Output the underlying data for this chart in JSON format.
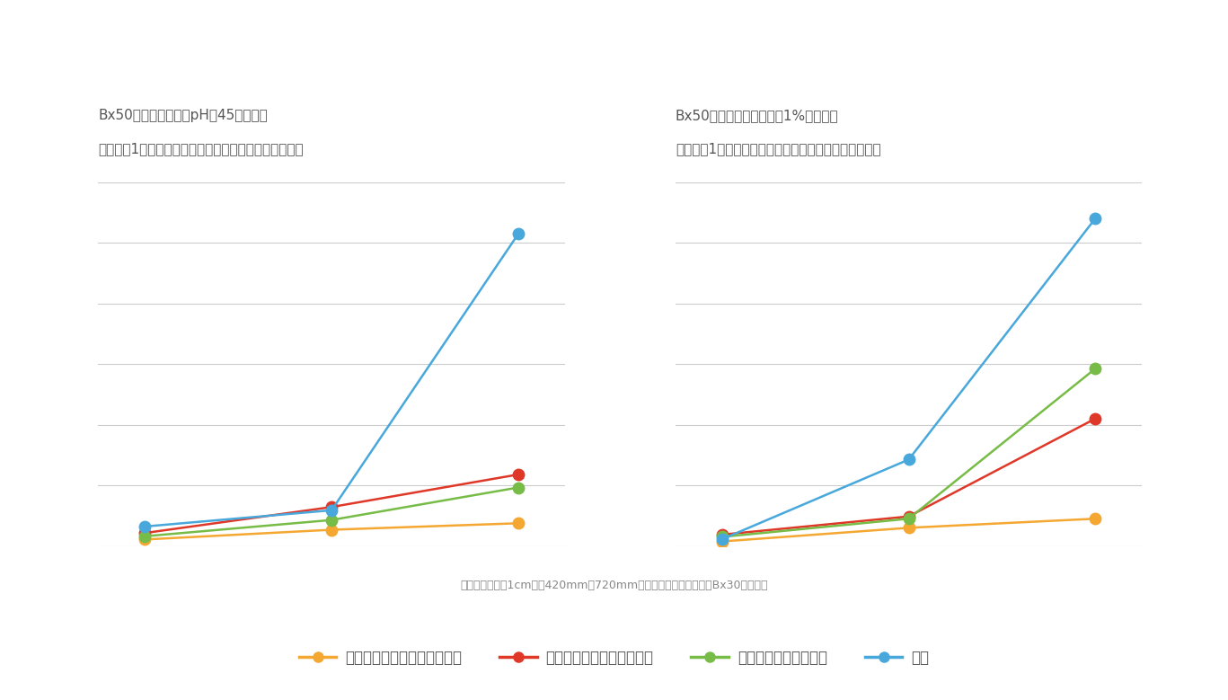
{
  "left_title_line1": "Bx50のでん粉に塩酸pHを45に調整。",
  "left_title_line2": "各濃度に1時間オートクレイブ処理し、着色度を測定。",
  "right_title_line1": "Bx50のでん粉にグリシン1%を添加。",
  "right_title_line2": "各濃度に1時間オートクレイブ処理し、着色度を測定。",
  "footnote": "着色度は光彩長1cmでの420mmと720mmの差として算出（数値はBx30の換算）",
  "x_values": [
    0,
    1,
    2
  ],
  "left_data": {
    "orange": [
      0.01,
      0.025,
      0.035
    ],
    "red": [
      0.02,
      0.06,
      0.11
    ],
    "green": [
      0.015,
      0.04,
      0.09
    ],
    "blue": [
      0.03,
      0.055,
      0.48
    ]
  },
  "right_data": {
    "orange": [
      0.01,
      0.04,
      0.06
    ],
    "red": [
      0.025,
      0.065,
      0.28
    ],
    "green": [
      0.02,
      0.06,
      0.39
    ],
    "blue": [
      0.015,
      0.19,
      0.72
    ]
  },
  "ylim_left": [
    0.0,
    0.56
  ],
  "ylim_right": [
    0.0,
    0.8
  ],
  "n_grid_lines": 7,
  "colors": {
    "orange": "#F4A832",
    "red": "#E03828",
    "green": "#78BC48",
    "blue": "#48A8DC"
  },
  "legend_labels": {
    "orange": "フィットファイバー＃８０Ｈ",
    "red": "フィットファイバー＃８０",
    "green": "水あめ（ＭＣ－５５）",
    "blue": "砂糖"
  },
  "title_color": "#555555",
  "grid_color": "#cccccc",
  "background_color": "#ffffff",
  "text_color": "#888888",
  "legend_text_color": "#555555",
  "marker_size": 9,
  "line_width": 1.8,
  "title_fontsize": 11,
  "footnote_fontsize": 9,
  "legend_fontsize": 12
}
